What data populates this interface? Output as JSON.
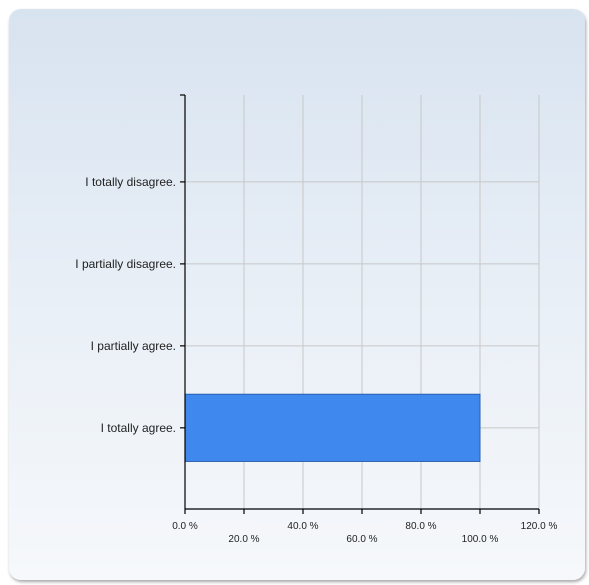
{
  "chart_data": {
    "type": "bar",
    "orientation": "horizontal",
    "categories": [
      "I totally disagree.",
      "I partially disagree.",
      "I partially agree.",
      "I totally agree."
    ],
    "values": [
      0,
      0,
      0,
      100
    ],
    "xlim": [
      0,
      120
    ],
    "xticks": [
      0,
      20,
      40,
      60,
      80,
      100,
      120
    ],
    "xtick_labels": [
      "0.0 %",
      "20.0 %",
      "40.0 %",
      "60.0 %",
      "80.0 %",
      "100.0 %",
      "120.0 %"
    ],
    "grid": true,
    "bar_color": "#3f88ee"
  }
}
